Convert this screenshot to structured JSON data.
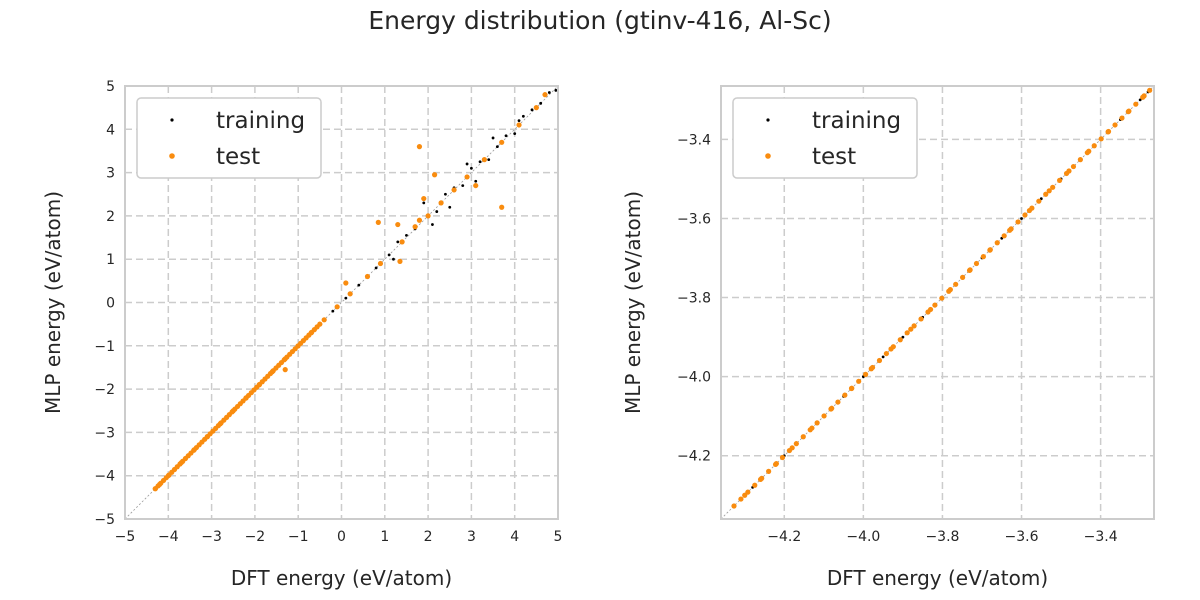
{
  "title": "Energy distribution (gtinv-416, Al-Sc)",
  "colors": {
    "training": "#000000",
    "test": "#f98c0f",
    "grid": "#cccccc",
    "spine": "#cccccc",
    "diagonal": "#9a9a9a"
  },
  "legend": [
    "training",
    "test"
  ],
  "chart_data": [
    {
      "type": "scatter",
      "xlabel": "DFT energy (eV/atom)",
      "ylabel": "MLP energy (eV/atom)",
      "xlim": [
        -5,
        5
      ],
      "ylim": [
        -5,
        5
      ],
      "xticks": [
        "−5",
        "−4",
        "−3",
        "−2",
        "−1",
        "0",
        "1",
        "2",
        "3",
        "4",
        "5"
      ],
      "yticks": [
        "−5",
        "−4",
        "−3",
        "−2",
        "−1",
        "0",
        "1",
        "2",
        "3",
        "4",
        "5"
      ],
      "grid": true,
      "legend_position": "upper-left",
      "series": [
        {
          "name": "training",
          "points": [
            [
              -4.3,
              -4.3
            ],
            [
              -4.1,
              -4.1
            ],
            [
              -3.8,
              -3.8
            ],
            [
              -3.5,
              -3.5
            ],
            [
              -3.2,
              -3.2
            ],
            [
              -2.9,
              -2.9
            ],
            [
              -2.6,
              -2.6
            ],
            [
              -2.3,
              -2.3
            ],
            [
              -2.0,
              -2.0
            ],
            [
              -1.7,
              -1.7
            ],
            [
              -1.4,
              -1.4
            ],
            [
              -1.1,
              -1.1
            ],
            [
              -0.8,
              -0.8
            ],
            [
              -0.5,
              -0.5
            ],
            [
              -0.2,
              -0.2
            ],
            [
              0.1,
              0.1
            ],
            [
              0.4,
              0.4
            ],
            [
              0.8,
              0.8
            ],
            [
              1.1,
              1.1
            ],
            [
              1.3,
              1.4
            ],
            [
              1.5,
              1.55
            ],
            [
              1.7,
              1.7
            ],
            [
              2.0,
              2.0
            ],
            [
              2.2,
              2.1
            ],
            [
              2.4,
              2.5
            ],
            [
              2.6,
              2.65
            ],
            [
              2.8,
              2.7
            ],
            [
              3.0,
              3.1
            ],
            [
              3.2,
              3.25
            ],
            [
              3.4,
              3.3
            ],
            [
              3.6,
              3.6
            ],
            [
              3.8,
              3.85
            ],
            [
              4.0,
              3.9
            ],
            [
              4.2,
              4.3
            ],
            [
              4.4,
              4.45
            ],
            [
              4.6,
              4.6
            ],
            [
              4.8,
              4.85
            ],
            [
              4.95,
              4.9
            ],
            [
              2.1,
              1.8
            ],
            [
              1.9,
              2.3
            ],
            [
              3.1,
              2.8
            ],
            [
              3.5,
              3.8
            ],
            [
              2.5,
              2.2
            ],
            [
              4.1,
              4.2
            ],
            [
              1.2,
              1.0
            ],
            [
              2.9,
              3.2
            ]
          ]
        },
        {
          "name": "test",
          "points": [
            [
              -4.3,
              -4.3
            ],
            [
              -4.2,
              -4.2
            ],
            [
              -4.0,
              -4.0
            ],
            [
              -3.7,
              -3.7
            ],
            [
              -3.4,
              -3.4
            ],
            [
              -3.1,
              -3.1
            ],
            [
              -2.8,
              -2.8
            ],
            [
              -2.5,
              -2.5
            ],
            [
              -2.2,
              -2.2
            ],
            [
              -1.9,
              -1.9
            ],
            [
              -1.6,
              -1.6
            ],
            [
              -1.3,
              -1.3
            ],
            [
              -1.0,
              -1.0
            ],
            [
              -0.7,
              -0.7
            ],
            [
              -0.4,
              -0.4
            ],
            [
              -0.1,
              -0.1
            ],
            [
              0.2,
              0.2
            ],
            [
              0.6,
              0.6
            ],
            [
              0.9,
              0.9
            ],
            [
              1.4,
              1.4
            ],
            [
              1.8,
              1.9
            ],
            [
              2.0,
              2.0
            ],
            [
              2.3,
              2.3
            ],
            [
              2.6,
              2.6
            ],
            [
              2.9,
              2.9
            ],
            [
              3.3,
              3.3
            ],
            [
              3.7,
              3.7
            ],
            [
              4.1,
              4.1
            ],
            [
              4.5,
              4.5
            ],
            [
              4.7,
              4.8
            ],
            [
              1.8,
              3.6
            ],
            [
              2.15,
              2.95
            ],
            [
              3.7,
              2.2
            ],
            [
              0.85,
              1.85
            ],
            [
              1.3,
              1.8
            ],
            [
              1.35,
              0.95
            ],
            [
              -1.3,
              -1.55
            ],
            [
              0.1,
              0.45
            ],
            [
              1.9,
              2.4
            ],
            [
              3.1,
              2.7
            ],
            [
              1.7,
              1.75
            ]
          ]
        }
      ]
    },
    {
      "type": "scatter",
      "xlabel": "DFT energy (eV/atom)",
      "ylabel": "MLP energy (eV/atom)",
      "xlim": [
        -4.36,
        -3.265
      ],
      "ylim": [
        -4.36,
        -3.265
      ],
      "xticks": [
        "−4.2",
        "−4.0",
        "−3.8",
        "−3.6",
        "−3.4"
      ],
      "yticks": [
        "−4.2",
        "−4.0",
        "−3.8",
        "−3.6",
        "−3.4"
      ],
      "grid": true,
      "legend_position": "upper-left",
      "series": [
        {
          "name": "training",
          "points": [
            [
              -4.31,
              -4.31
            ],
            [
              -4.28,
              -4.28
            ],
            [
              -4.24,
              -4.24
            ],
            [
              -4.2,
              -4.2
            ],
            [
              -4.15,
              -4.15
            ],
            [
              -4.1,
              -4.1
            ],
            [
              -4.05,
              -4.05
            ],
            [
              -4.0,
              -4.0
            ],
            [
              -3.95,
              -3.95
            ],
            [
              -3.9,
              -3.9
            ],
            [
              -3.85,
              -3.85
            ],
            [
              -3.8,
              -3.8
            ],
            [
              -3.75,
              -3.75
            ],
            [
              -3.7,
              -3.7
            ],
            [
              -3.65,
              -3.65
            ],
            [
              -3.6,
              -3.6
            ],
            [
              -3.55,
              -3.55
            ],
            [
              -3.5,
              -3.5
            ],
            [
              -3.45,
              -3.45
            ],
            [
              -3.4,
              -3.4
            ],
            [
              -3.35,
              -3.35
            ],
            [
              -3.3,
              -3.3
            ],
            [
              -3.28,
              -3.28
            ]
          ]
        },
        {
          "name": "test",
          "points": [
            [
              -4.3,
              -4.3
            ],
            [
              -4.26,
              -4.26
            ],
            [
              -4.22,
              -4.22
            ],
            [
              -4.18,
              -4.18
            ],
            [
              -4.13,
              -4.13
            ],
            [
              -4.08,
              -4.08
            ],
            [
              -4.03,
              -4.03
            ],
            [
              -3.98,
              -3.98
            ],
            [
              -3.93,
              -3.93
            ],
            [
              -3.88,
              -3.88
            ],
            [
              -3.83,
              -3.83
            ],
            [
              -3.78,
              -3.78
            ],
            [
              -3.73,
              -3.73
            ],
            [
              -3.68,
              -3.68
            ],
            [
              -3.63,
              -3.63
            ],
            [
              -3.58,
              -3.58
            ],
            [
              -3.53,
              -3.53
            ],
            [
              -3.48,
              -3.48
            ],
            [
              -3.43,
              -3.43
            ],
            [
              -3.38,
              -3.38
            ],
            [
              -3.33,
              -3.33
            ],
            [
              -3.29,
              -3.29
            ]
          ]
        }
      ]
    }
  ]
}
